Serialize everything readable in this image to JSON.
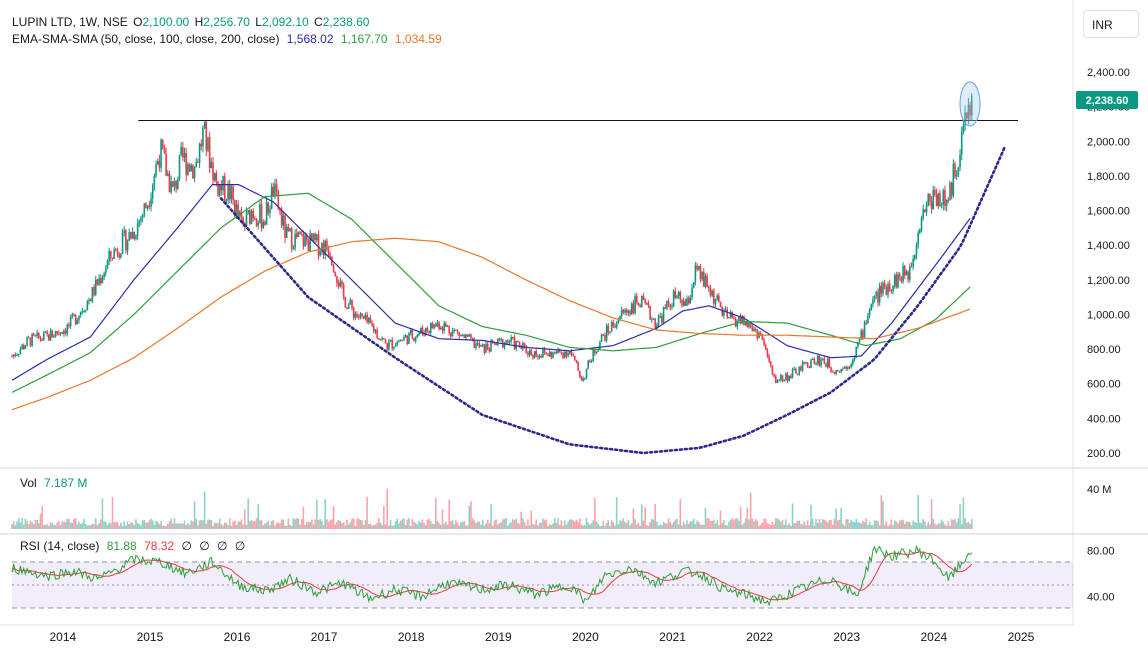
{
  "header": {
    "symbol": "LUPIN LTD, 1W, NSE",
    "ohlc": [
      {
        "key": "O",
        "value": "2,100.00"
      },
      {
        "key": "H",
        "value": "2,256.70"
      },
      {
        "key": "L",
        "value": "2,092.10"
      },
      {
        "key": "C",
        "value": "2,238.60"
      }
    ],
    "indicator_label": "EMA-SMA-SMA (50, close, 100, close, 200, close)",
    "indicator_values": [
      "1,568.02",
      "1,167.70",
      "1,034.59"
    ]
  },
  "currency_button": "INR",
  "last_price_tag": "2,238.60",
  "volume_pane": {
    "label": "Vol",
    "value": "7.187 M",
    "axis_label": "40 M"
  },
  "rsi_pane": {
    "label": "RSI (14, close)",
    "value1": "81.88",
    "value2": "78.32",
    "placeholders": [
      "∅",
      "∅",
      "∅",
      "∅"
    ]
  },
  "colors": {
    "up": "#089981",
    "down": "#f23645",
    "ema50": "#2a2ea8",
    "sma100": "#2e9e3a",
    "sma200": "#e8772b",
    "rsi": "#2e9e3a",
    "rsi_ma": "#f23645",
    "cup_line": "#2b2a8c",
    "price_tag_bg": "#089981"
  },
  "chart_data": {
    "type": "line",
    "title": "LUPIN LTD, 1W, NSE",
    "ylim": [
      160,
      2600
    ],
    "y_ticks": [
      "200.00",
      "400.00",
      "600.00",
      "800.00",
      "1,000.00",
      "1,200.00",
      "1,400.00",
      "1,600.00",
      "1,800.00",
      "2,000.00",
      "2,200.00",
      "2,400.00"
    ],
    "x_tick_labels": [
      "2014",
      "2015",
      "2016",
      "2017",
      "2018",
      "2019",
      "2020",
      "2021",
      "2022",
      "2023",
      "2024",
      "2025"
    ],
    "price_x": [
      2013.6,
      2013.8,
      2014.0,
      2014.25,
      2014.5,
      2014.75,
      2015.0,
      2015.15,
      2015.3,
      2015.45,
      2015.55,
      2015.7,
      2015.8,
      2015.95,
      2016.1,
      2016.25,
      2016.35,
      2016.5,
      2016.6,
      2016.75,
      2017.0,
      2017.25,
      2017.4,
      2017.55,
      2017.75,
      2017.9,
      2018.1,
      2018.3,
      2018.5,
      2018.75,
      2019.0,
      2019.3,
      2019.55,
      2019.8,
      2020.0,
      2020.15,
      2020.25,
      2020.35,
      2020.6,
      2020.8,
      2021.0,
      2021.2,
      2021.35,
      2021.45,
      2021.6,
      2021.8,
      2022.0,
      2022.2,
      2022.35,
      2022.55,
      2022.75,
      2022.9,
      2023.05,
      2023.2,
      2023.35,
      2023.45,
      2023.6,
      2023.75,
      2023.9,
      2024.05,
      2024.2,
      2024.35,
      2024.45,
      2024.55,
      2024.62
    ],
    "price_y": [
      760,
      850,
      870,
      930,
      1100,
      1350,
      1480,
      1640,
      1950,
      1700,
      1900,
      1850,
      2050,
      1750,
      1700,
      1500,
      1600,
      1550,
      1720,
      1450,
      1420,
      1380,
      1100,
      1000,
      920,
      820,
      860,
      900,
      950,
      880,
      800,
      850,
      780,
      770,
      790,
      620,
      750,
      850,
      1000,
      1080,
      950,
      1100,
      1050,
      1250,
      1150,
      980,
      960,
      880,
      620,
      650,
      720,
      740,
      680,
      700,
      870,
      1050,
      1150,
      1200,
      1250,
      1600,
      1700,
      1640,
      1900,
      2120,
      2238.6
    ],
    "series": [
      {
        "name": "EMA 50",
        "x": [
          2013.6,
          2014.0,
          2014.5,
          2015.0,
          2015.5,
          2015.9,
          2016.2,
          2016.6,
          2017.0,
          2017.5,
          2018.0,
          2018.5,
          2019.0,
          2019.5,
          2020.0,
          2020.5,
          2021.0,
          2021.3,
          2021.6,
          2022.0,
          2022.5,
          2023.0,
          2023.35,
          2023.7,
          2024.0,
          2024.3,
          2024.62
        ],
        "y": [
          620,
          740,
          870,
          1200,
          1500,
          1750,
          1750,
          1650,
          1450,
          1200,
          950,
          860,
          850,
          810,
          790,
          820,
          920,
          1020,
          1050,
          980,
          820,
          750,
          760,
          950,
          1150,
          1350,
          1568.02
        ]
      },
      {
        "name": "SMA 100",
        "x": [
          2013.6,
          2014.0,
          2014.5,
          2015.0,
          2015.5,
          2016.0,
          2016.5,
          2017.0,
          2017.5,
          2018.0,
          2018.5,
          2019.0,
          2019.5,
          2020.0,
          2020.5,
          2021.0,
          2021.5,
          2022.0,
          2022.5,
          2023.0,
          2023.4,
          2023.8,
          2024.2,
          2024.62
        ],
        "y": [
          550,
          650,
          780,
          1000,
          1250,
          1500,
          1680,
          1700,
          1550,
          1300,
          1050,
          930,
          880,
          810,
          790,
          810,
          890,
          960,
          950,
          880,
          820,
          860,
          970,
          1167.7
        ]
      },
      {
        "name": "SMA 200",
        "x": [
          2013.6,
          2014.0,
          2014.5,
          2015.0,
          2015.5,
          2016.0,
          2016.5,
          2017.0,
          2017.5,
          2018.0,
          2018.5,
          2019.0,
          2019.5,
          2020.0,
          2020.5,
          2021.0,
          2021.5,
          2022.0,
          2022.5,
          2023.0,
          2023.5,
          2024.0,
          2024.62
        ],
        "y": [
          450,
          520,
          620,
          750,
          920,
          1100,
          1250,
          1360,
          1420,
          1440,
          1420,
          1330,
          1200,
          1080,
          980,
          910,
          890,
          880,
          880,
          870,
          860,
          920,
          1034.59
        ]
      }
    ],
    "resistance_level": 2120,
    "resistance_x_range": [
      2015.05,
      2025.15
    ],
    "cup_curve": {
      "x": [
        2016.0,
        2017.0,
        2018.0,
        2019.0,
        2020.0,
        2020.85,
        2021.5,
        2022.0,
        2022.5,
        2023.0,
        2023.5,
        2024.0,
        2024.5,
        2025.0
      ],
      "y": [
        1670,
        1100,
        750,
        420,
        250,
        200,
        230,
        300,
        420,
        550,
        740,
        1050,
        1400,
        1970
      ]
    },
    "volume_label": "Vol 7.187 M",
    "volume_max": "40 M",
    "rsi_levels": [
      70,
      50,
      30
    ],
    "rsi_ticks": [
      "80.00",
      "40.00"
    ],
    "rsi_x": [
      2013.6,
      2014.0,
      2014.3,
      2014.6,
      2015.0,
      2015.3,
      2015.6,
      2015.9,
      2016.2,
      2016.5,
      2016.8,
      2017.1,
      2017.4,
      2017.7,
      2018.0,
      2018.3,
      2018.6,
      2019.0,
      2019.3,
      2019.6,
      2020.0,
      2020.2,
      2020.4,
      2020.7,
      2021.0,
      2021.3,
      2021.5,
      2021.8,
      2022.0,
      2022.3,
      2022.6,
      2023.0,
      2023.3,
      2023.5,
      2023.7,
      2024.0,
      2024.2,
      2024.35,
      2024.5,
      2024.62
    ],
    "rsi_y": [
      65,
      58,
      62,
      55,
      72,
      70,
      60,
      70,
      50,
      45,
      55,
      44,
      52,
      38,
      46,
      40,
      52,
      46,
      50,
      42,
      50,
      35,
      58,
      65,
      52,
      62,
      60,
      45,
      42,
      35,
      45,
      56,
      40,
      82,
      75,
      80,
      70,
      55,
      68,
      81.88
    ]
  }
}
